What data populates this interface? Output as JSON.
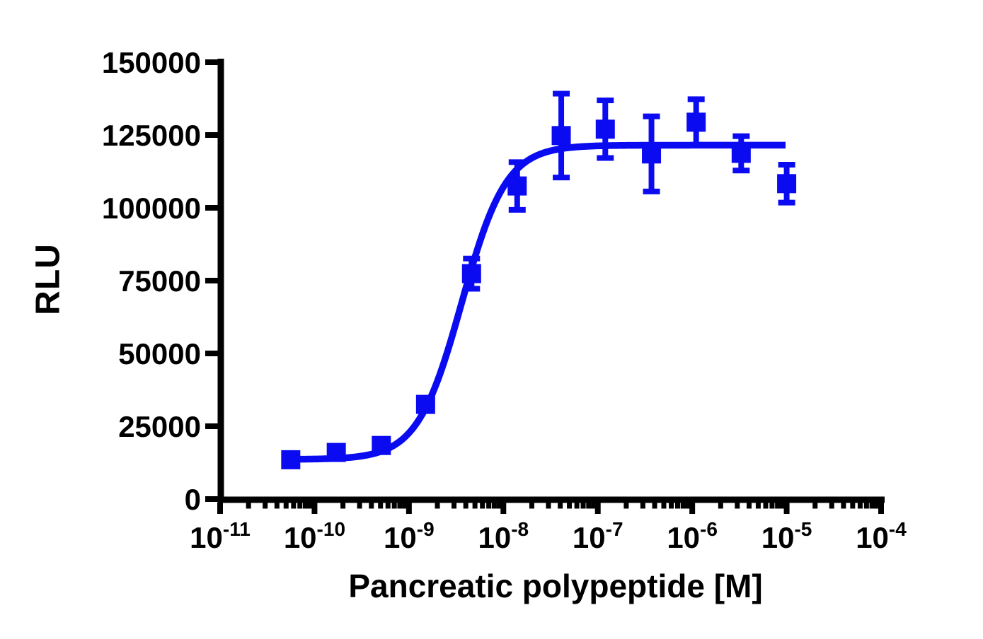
{
  "figure": {
    "background_color": "#ffffff",
    "axis_color": "#000000",
    "series_color": "#0b0bf2"
  },
  "chart_data": {
    "type": "scatter",
    "title": "",
    "xlabel": "Pancreatic polypeptide [M]",
    "ylabel": "RLU",
    "x_scale": "log10",
    "x_range_molar": [
      1e-11,
      0.0001
    ],
    "x_major_tick_exponents": [
      -11,
      -10,
      -9,
      -8,
      -7,
      -6,
      -5,
      -4
    ],
    "x_tick_mantissa": "10",
    "x_minor_ticks_per_decade": [
      2,
      3,
      4,
      5,
      6,
      7,
      8,
      9
    ],
    "y_range": [
      0,
      150000
    ],
    "y_tick_step": 25000,
    "y_tick_values": [
      0,
      25000,
      50000,
      75000,
      100000,
      125000,
      150000
    ],
    "y_tick_labels": [
      "0",
      "25000",
      "50000",
      "75000",
      "100000",
      "125000",
      "150000"
    ],
    "grid": false,
    "legend": null,
    "series": [
      {
        "name": "Pancreatic polypeptide",
        "marker": "square",
        "color": "#0b0bf2",
        "x_molar": [
          5.6e-11,
          1.7e-10,
          5.1e-10,
          1.5e-09,
          4.6e-09,
          1.4e-08,
          4.1e-08,
          1.2e-07,
          3.7e-07,
          1.1e-06,
          3.3e-06,
          1e-05
        ],
        "y_rlu": [
          13500,
          16000,
          18400,
          32500,
          77400,
          107500,
          124800,
          127000,
          118500,
          129400,
          118700,
          108300
        ],
        "y_error_sem": [
          null,
          null,
          null,
          null,
          5200,
          8200,
          14400,
          9900,
          12900,
          7900,
          5900,
          6500
        ]
      }
    ],
    "fit_curve": {
      "model": "four-parameter-logistic",
      "bottom_rlu": 13600,
      "top_rlu": 121500,
      "log10_ec50": -8.44,
      "ec50_molar": 3.6e-09,
      "hill_slope": 1.85,
      "x_draw_range_log10": [
        -10.252,
        -5.0
      ]
    }
  }
}
